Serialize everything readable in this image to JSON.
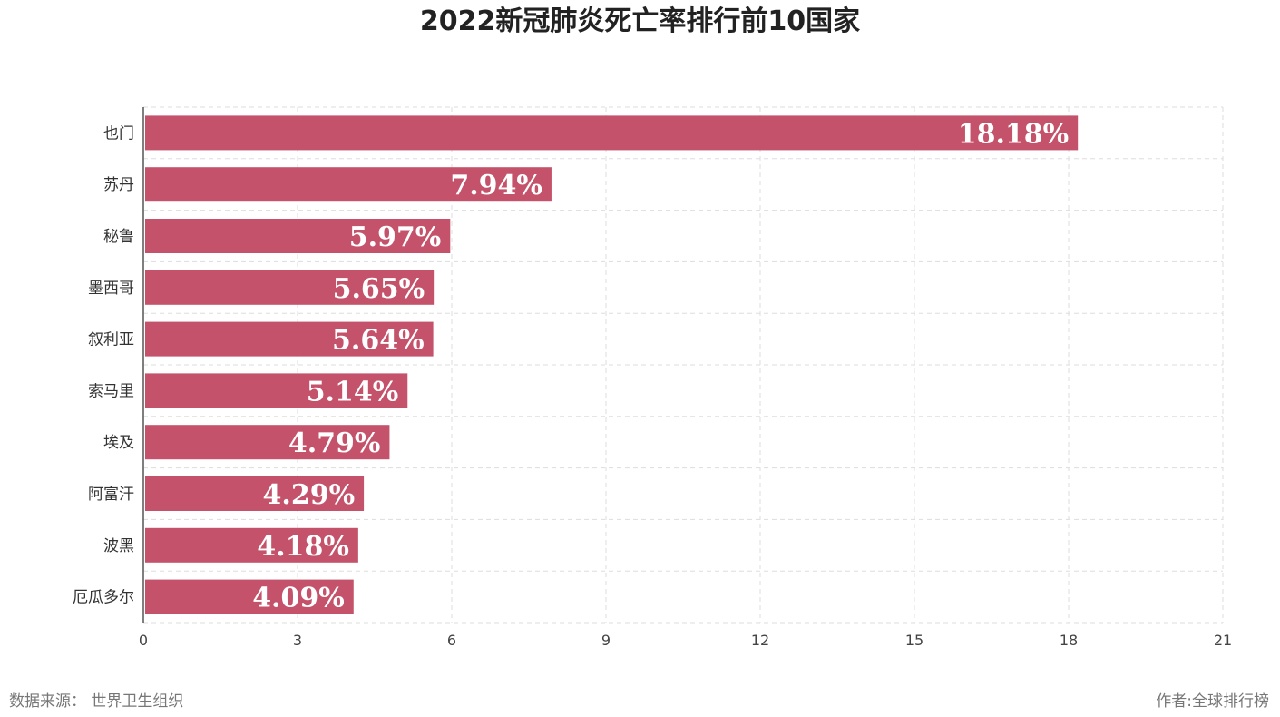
{
  "chart_data": {
    "type": "bar",
    "orientation": "horizontal",
    "title": "2022新冠肺炎死亡率排行前10国家",
    "categories": [
      "也门",
      "苏丹",
      "秘鲁",
      "墨西哥",
      "叙利亚",
      "索马里",
      "埃及",
      "阿富汗",
      "波黑",
      "厄瓜多尔"
    ],
    "values": [
      18.18,
      7.94,
      5.97,
      5.65,
      5.64,
      5.14,
      4.79,
      4.29,
      4.18,
      4.09
    ],
    "value_labels": [
      "18.18%",
      "7.94%",
      "5.97%",
      "5.65%",
      "5.64%",
      "5.14%",
      "4.79%",
      "4.29%",
      "4.18%",
      "4.09%"
    ],
    "xlim": [
      0,
      21
    ],
    "xticks": [
      "0",
      "3",
      "6",
      "9",
      "12",
      "15",
      "18",
      "21"
    ],
    "grid": true,
    "bar_color": "#c4526a"
  },
  "footer": {
    "source": "数据来源： 世界卫生组织",
    "author": "作者:全球排行榜"
  }
}
